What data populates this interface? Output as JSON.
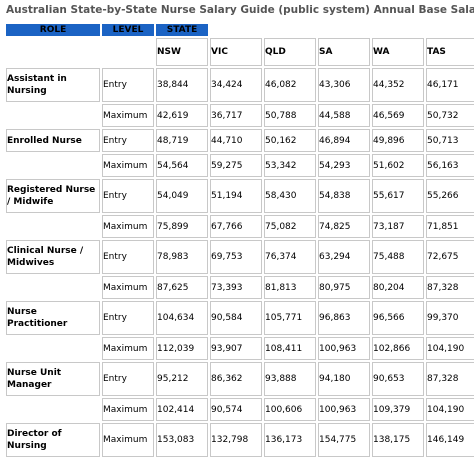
{
  "caption": "Australian State-by-State Nurse Salary Guide (public system) Annual Base Salaries",
  "headers": {
    "role": "ROLE",
    "level": "LEVEL",
    "state": "STATE"
  },
  "states": [
    "NSW",
    "VIC",
    "QLD",
    "SA",
    "WA",
    "TAS"
  ],
  "rows": [
    {
      "role": "Assistant in Nursing",
      "levels": [
        {
          "level": "Entry",
          "values": [
            "38,844",
            "34,424",
            "46,082",
            "43,306",
            "44,352",
            "46,171"
          ]
        },
        {
          "level": "Maximum",
          "values": [
            "42,619",
            "36,717",
            "50,788",
            "44,588",
            "46,569",
            "50,732"
          ]
        }
      ]
    },
    {
      "role": "Enrolled Nurse",
      "levels": [
        {
          "level": "Entry",
          "values": [
            "48,719",
            "44,710",
            "50,162",
            "46,894",
            "49,896",
            "50,713"
          ]
        },
        {
          "level": "Maximum",
          "values": [
            "54,564",
            "59,275",
            "53,342",
            "54,293",
            "51,602",
            "56,163"
          ]
        }
      ]
    },
    {
      "role": "Registered Nurse / Midwife",
      "levels": [
        {
          "level": "Entry",
          "values": [
            "54,049",
            "51,194",
            "58,430",
            "54,838",
            "55,617",
            "55,266"
          ]
        },
        {
          "level": "Maximum",
          "values": [
            "75,899",
            "67,766",
            "75,082",
            "74,825",
            "73,187",
            "71,851"
          ]
        }
      ]
    },
    {
      "role": "Clinical Nurse / Midwives",
      "levels": [
        {
          "level": "Entry",
          "values": [
            "78,983",
            "69,753",
            "76,374",
            "63,294",
            "75,488",
            "72,675"
          ]
        },
        {
          "level": "Maximum",
          "values": [
            "87,625",
            "73,393",
            "81,813",
            "80,975",
            "80,204",
            "87,328"
          ]
        }
      ]
    },
    {
      "role": "Nurse Practitioner",
      "levels": [
        {
          "level": "Entry",
          "values": [
            "104,634",
            "90,584",
            "105,771",
            "96,863",
            "96,566",
            "99,370"
          ]
        },
        {
          "level": "Maximum",
          "values": [
            "112,039",
            "93,907",
            "108,411",
            "100,963",
            "102,866",
            "104,190"
          ]
        }
      ]
    },
    {
      "role": "Nurse Unit Manager",
      "levels": [
        {
          "level": "Entry",
          "values": [
            "95,212",
            "86,362",
            "93,888",
            "94,180",
            "90,653",
            "87,328"
          ]
        },
        {
          "level": "Maximum",
          "values": [
            "102,414",
            "90,574",
            "100,606",
            "100,963",
            "109,379",
            "104,190"
          ]
        }
      ]
    },
    {
      "role": "Director of Nursing",
      "levels": [
        {
          "level": "Maximum",
          "values": [
            "153,083",
            "132,798",
            "136,173",
            "154,775",
            "138,175",
            "146,149"
          ]
        }
      ]
    }
  ]
}
